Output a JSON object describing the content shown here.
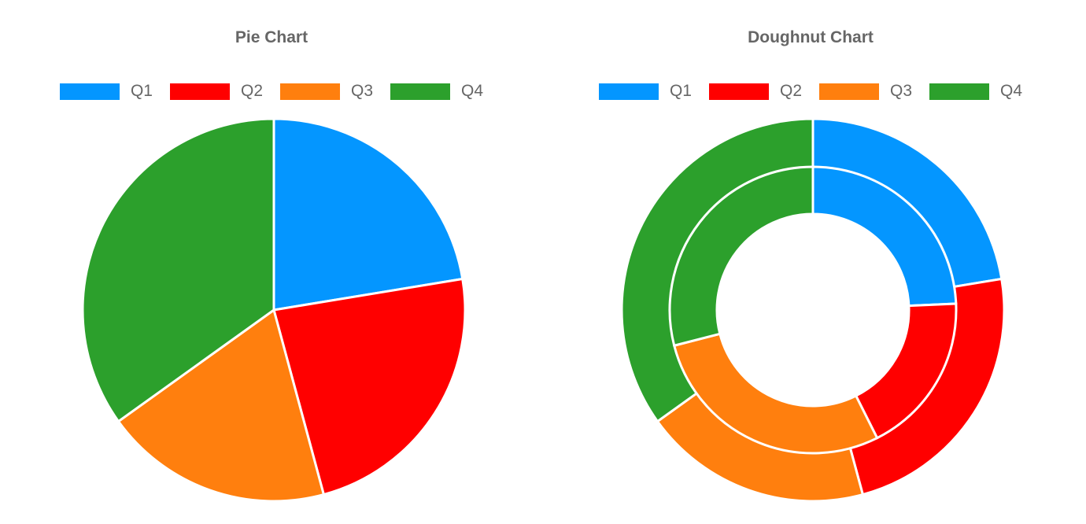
{
  "colors": [
    "#0496ff",
    "#ff0000",
    "#ff7f0e",
    "#2ca02c"
  ],
  "chart_data": [
    {
      "type": "pie",
      "title": "Pie Chart",
      "categories": [
        "Q1",
        "Q2",
        "Q3",
        "Q4"
      ],
      "series": [
        {
          "values": [
            22.4,
            23.4,
            19.3,
            34.9
          ]
        }
      ],
      "legend": "top"
    },
    {
      "type": "doughnut",
      "title": "Doughnut Chart",
      "categories": [
        "Q1",
        "Q2",
        "Q3",
        "Q4"
      ],
      "series": [
        {
          "values": [
            22.4,
            23.4,
            19.3,
            34.9
          ]
        },
        {
          "values": [
            24.3,
            18.3,
            28.4,
            29.0
          ]
        }
      ],
      "legend": "top"
    }
  ]
}
